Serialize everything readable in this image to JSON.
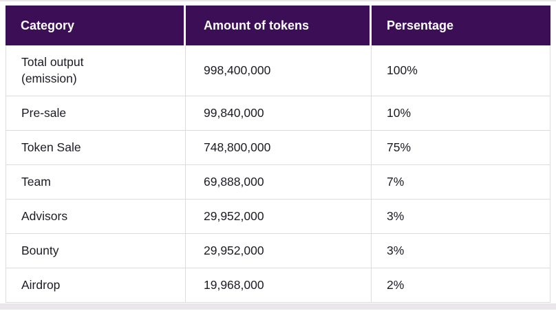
{
  "table": {
    "headers": [
      "Category",
      "Amount of tokens",
      "Persentage"
    ],
    "rows": [
      {
        "category": "Total output (emission)",
        "amount": "998,400,000",
        "percentage": "100%"
      },
      {
        "category": "Pre-sale",
        "amount": "99,840,000",
        "percentage": "10%"
      },
      {
        "category": "Token Sale",
        "amount": "748,800,000",
        "percentage": "75%"
      },
      {
        "category": "Team",
        "amount": "69,888,000",
        "percentage": "7%"
      },
      {
        "category": "Advisors",
        "amount": "29,952,000",
        "percentage": "3%"
      },
      {
        "category": "Bounty",
        "amount": "29,952,000",
        "percentage": "3%"
      },
      {
        "category": "Airdrop",
        "amount": "19,968,000",
        "percentage": "2%"
      }
    ]
  },
  "colors": {
    "header_bg": "#3b0e56",
    "header_text": "#ffffff",
    "body_text": "#1c1b24",
    "border": "#dcdcdc",
    "page_bg": "#ffffff",
    "strip": "#e8e6e8"
  }
}
